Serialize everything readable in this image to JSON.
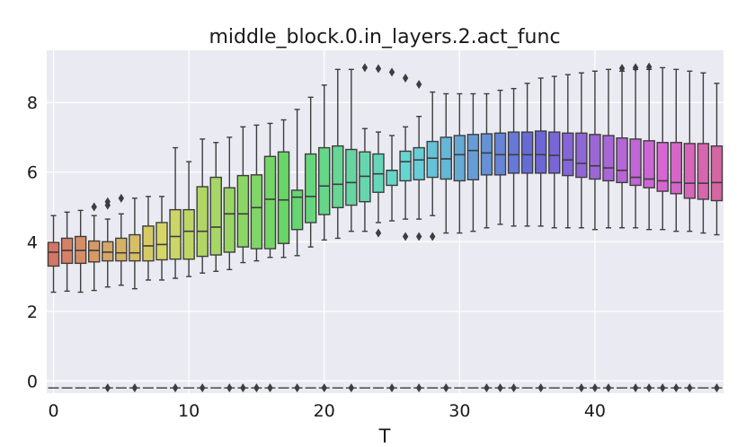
{
  "chart_data": {
    "type": "box",
    "title": "middle_block.0.in_layers.2.act_func",
    "xlabel": "T",
    "ylabel": "",
    "xlim": [
      -0.5,
      49.5
    ],
    "ylim": [
      -0.35,
      9.5
    ],
    "x_ticks": [
      0,
      10,
      20,
      30,
      40
    ],
    "y_ticks": [
      0,
      2,
      4,
      6,
      8
    ],
    "grid": true,
    "categories": [
      0,
      1,
      2,
      3,
      4,
      5,
      6,
      7,
      8,
      9,
      10,
      11,
      12,
      13,
      14,
      15,
      16,
      17,
      18,
      19,
      20,
      21,
      22,
      23,
      24,
      25,
      26,
      27,
      28,
      29,
      30,
      31,
      32,
      33,
      34,
      35,
      36,
      37,
      38,
      39,
      40,
      41,
      42,
      43,
      44,
      45,
      46,
      47,
      48,
      49
    ],
    "q1": [
      3.3,
      3.38,
      3.38,
      3.42,
      3.45,
      3.45,
      3.45,
      3.45,
      3.48,
      3.5,
      3.5,
      3.58,
      3.62,
      3.7,
      3.85,
      3.8,
      3.8,
      3.95,
      4.35,
      4.55,
      4.78,
      4.98,
      5.05,
      5.15,
      5.42,
      5.62,
      5.75,
      5.78,
      5.85,
      5.8,
      5.75,
      5.78,
      5.92,
      5.92,
      5.97,
      5.97,
      5.97,
      5.97,
      5.9,
      5.85,
      5.8,
      5.75,
      5.7,
      5.62,
      5.55,
      5.45,
      5.38,
      5.25,
      5.22,
      5.18
    ],
    "median": [
      3.7,
      3.75,
      3.75,
      3.75,
      3.7,
      3.68,
      3.68,
      3.88,
      3.92,
      4.15,
      4.3,
      4.3,
      4.42,
      4.8,
      4.8,
      4.98,
      5.22,
      5.2,
      5.28,
      5.3,
      5.6,
      5.65,
      5.7,
      5.88,
      5.95,
      6.05,
      6.3,
      6.35,
      6.4,
      6.38,
      6.5,
      6.62,
      6.55,
      6.5,
      6.5,
      6.5,
      6.5,
      6.48,
      6.35,
      6.25,
      6.18,
      6.12,
      6.05,
      5.85,
      5.8,
      5.75,
      5.7,
      5.68,
      5.68,
      5.7
    ],
    "q3": [
      3.98,
      4.1,
      4.15,
      4.02,
      4.0,
      4.1,
      4.2,
      4.45,
      4.55,
      4.92,
      4.92,
      5.58,
      5.85,
      5.55,
      5.9,
      5.92,
      6.45,
      6.58,
      5.48,
      6.52,
      6.7,
      6.75,
      6.65,
      6.58,
      6.52,
      6.05,
      6.6,
      6.7,
      6.88,
      7.0,
      7.05,
      7.08,
      7.1,
      7.12,
      7.15,
      7.15,
      7.18,
      7.15,
      7.12,
      7.12,
      7.08,
      7.05,
      6.98,
      6.95,
      6.9,
      6.85,
      6.85,
      6.82,
      6.82,
      6.75
    ],
    "wlo": [
      2.55,
      2.58,
      2.55,
      2.6,
      2.7,
      2.75,
      2.65,
      2.9,
      2.9,
      2.95,
      3.0,
      3.1,
      3.15,
      3.2,
      3.4,
      3.45,
      3.55,
      3.55,
      3.6,
      3.85,
      4.05,
      4.1,
      4.3,
      4.3,
      4.55,
      4.6,
      4.65,
      4.65,
      4.75,
      4.25,
      4.25,
      4.3,
      4.4,
      4.5,
      4.45,
      4.45,
      4.45,
      4.4,
      4.4,
      4.4,
      4.35,
      4.4,
      4.4,
      4.4,
      4.35,
      4.35,
      4.3,
      4.3,
      4.25,
      4.2
    ],
    "whi": [
      4.75,
      4.85,
      4.9,
      4.75,
      4.65,
      4.8,
      5.25,
      5.3,
      5.3,
      6.7,
      6.3,
      6.95,
      6.85,
      7.0,
      7.3,
      7.35,
      7.4,
      7.5,
      7.8,
      8.15,
      8.5,
      8.95,
      8.95,
      7.25,
      7.15,
      7.05,
      7.3,
      7.6,
      8.3,
      8.25,
      8.25,
      8.25,
      8.25,
      8.35,
      8.4,
      8.55,
      8.7,
      8.75,
      8.8,
      8.85,
      8.9,
      8.95,
      8.9,
      8.95,
      8.95,
      9.0,
      8.95,
      8.9,
      8.85,
      8.55
    ],
    "outliers": [
      [
        3,
        5.0
      ],
      [
        4,
        5.05
      ],
      [
        4,
        5.15
      ],
      [
        5,
        5.25
      ],
      [
        23,
        9.0
      ],
      [
        24,
        8.97
      ],
      [
        25,
        8.87
      ],
      [
        26,
        8.7
      ],
      [
        27,
        8.52
      ],
      [
        24,
        4.25
      ],
      [
        26,
        4.15
      ],
      [
        27,
        4.15
      ],
      [
        28,
        4.15
      ],
      [
        42,
        8.98
      ],
      [
        43,
        9.0
      ],
      [
        44,
        9.02
      ]
    ],
    "zero_line_value": -0.2,
    "zero_outlier_x": [
      4,
      6,
      9,
      11,
      13,
      14,
      15,
      16,
      18,
      20,
      22,
      25,
      27,
      29,
      32,
      33,
      34,
      36,
      39,
      40,
      41,
      43,
      44,
      45,
      46,
      47,
      49
    ],
    "palette_note": "seaborn husl gradient"
  }
}
